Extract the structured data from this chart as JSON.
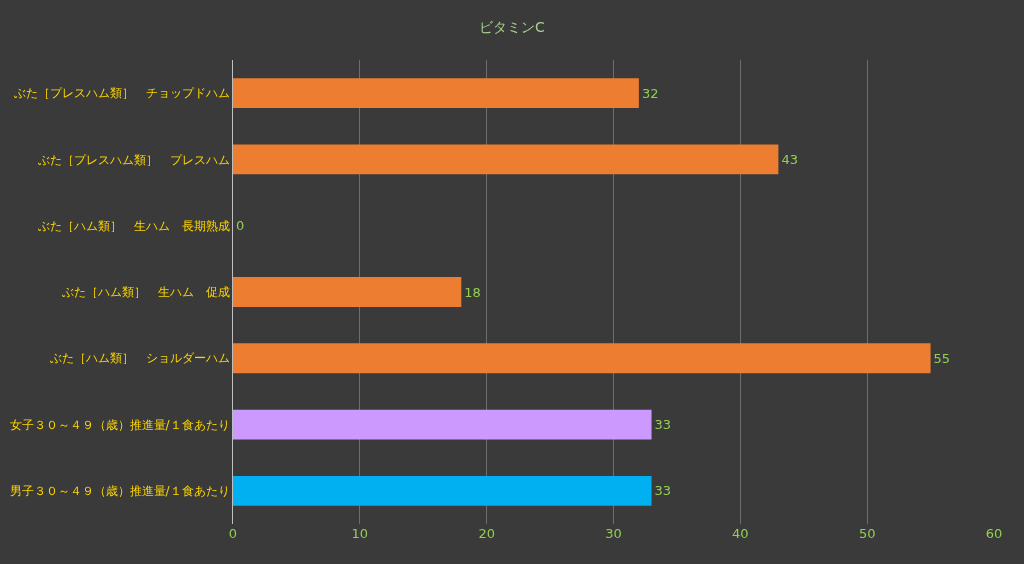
{
  "chart_data": {
    "type": "bar",
    "title": "ビタミンC",
    "orientation": "horizontal",
    "categories": [
      "ぶた［プレスハム類］　チョップドハム",
      "ぶた［プレスハム類］　プレスハム",
      "ぶた［ハム類］　生ハム　長期熟成",
      "ぶた［ハム類］　生ハム　促成",
      "ぶた［ハム類］　ショルダーハム",
      "女子３０～４９（歳）推進量/１食あたり",
      "男子３０～４９（歳）推進量/１食あたり"
    ],
    "values": [
      32,
      43,
      0,
      18,
      55,
      33,
      33
    ],
    "colors": [
      "#ed7d31",
      "#ed7d31",
      "#ed7d31",
      "#ed7d31",
      "#ed7d31",
      "#cc99ff",
      "#00b0f0"
    ],
    "xlim": [
      0,
      60
    ],
    "xticks": [
      0,
      10,
      20,
      30,
      40,
      50,
      60
    ],
    "grid": "x",
    "data_labels": true
  }
}
